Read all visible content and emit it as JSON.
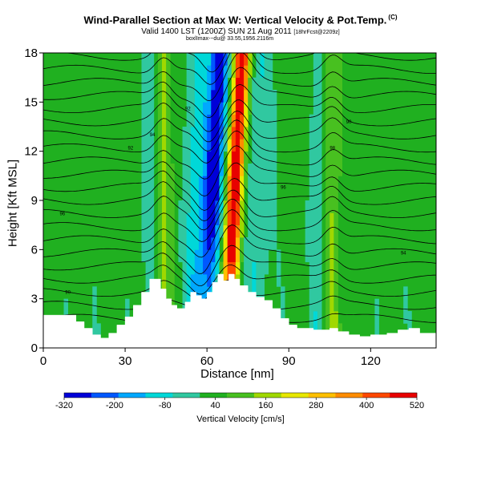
{
  "header": {
    "title": "Wind-Parallel Section at Max W: Vertical Velocity & Pot.Temp.",
    "title_badge": "(C)",
    "subtitle_main": "Valid 1400 LST (1200Z) SUN 21 Aug 2011",
    "subtitle_tag": "[18hrFcst@2209z]",
    "subtitle_small": "boxlImax-~du@ 33.55,1956.2116m"
  },
  "chart_data": {
    "type": "heatmap",
    "xlabel": "Distance [nm]",
    "ylabel": "Height [Kft MSL]",
    "xlim": [
      0,
      144
    ],
    "ylim": [
      0,
      18
    ],
    "x_ticks": [
      0,
      30,
      60,
      90,
      120
    ],
    "y_ticks": [
      0,
      3,
      6,
      9,
      12,
      15,
      18
    ],
    "colorbar": {
      "label": "Vertical Velocity [cm/s]",
      "min": -320,
      "max": 520,
      "tick_labels": [
        "-320",
        "-200",
        "-80",
        "40",
        "160",
        "280",
        "400",
        "520"
      ],
      "colors": [
        "#0000d8",
        "#0058ff",
        "#00a8ff",
        "#00d8d8",
        "#30c8a0",
        "#20b020",
        "#48c020",
        "#a0d800",
        "#e8e800",
        "#ffc000",
        "#ff8c00",
        "#ff4800",
        "#e80000"
      ]
    },
    "background_color": "#20b020",
    "updraft": {
      "x": 70,
      "max_w": 520
    },
    "downdraft": {
      "x": 62,
      "min_w": -320
    },
    "secondary_updrafts": [
      {
        "x": 44
      },
      {
        "x": 106
      }
    ],
    "terrain_kft": [
      [
        0,
        2.0
      ],
      [
        8,
        2.0
      ],
      [
        12,
        1.6
      ],
      [
        15,
        1.2
      ],
      [
        18,
        0.8
      ],
      [
        21,
        0.6
      ],
      [
        24,
        0.9
      ],
      [
        27,
        1.4
      ],
      [
        30,
        1.9
      ],
      [
        33,
        2.6
      ],
      [
        36,
        3.4
      ],
      [
        39,
        4.2
      ],
      [
        41,
        4.2
      ],
      [
        43,
        3.6
      ],
      [
        45,
        3.0
      ],
      [
        47,
        2.6
      ],
      [
        49,
        2.4
      ],
      [
        52,
        2.8
      ],
      [
        54,
        3.4
      ],
      [
        56,
        3.2
      ],
      [
        58,
        3.0
      ],
      [
        60,
        3.4
      ],
      [
        62,
        4.0
      ],
      [
        64,
        4.5
      ],
      [
        66,
        4.1
      ],
      [
        68,
        4.5
      ],
      [
        70,
        4.2
      ],
      [
        72,
        3.8
      ],
      [
        75,
        3.4
      ],
      [
        78,
        3.1
      ],
      [
        81,
        2.9
      ],
      [
        84,
        2.4
      ],
      [
        87,
        1.8
      ],
      [
        90,
        1.4
      ],
      [
        93,
        1.2
      ],
      [
        96,
        1.2
      ],
      [
        99,
        1.1
      ],
      [
        102,
        1.1
      ],
      [
        105,
        1.2
      ],
      [
        108,
        1.0
      ],
      [
        112,
        0.8
      ],
      [
        116,
        0.7
      ],
      [
        120,
        0.8
      ],
      [
        126,
        0.9
      ],
      [
        130,
        1.1
      ],
      [
        134,
        1.2
      ],
      [
        138,
        0.9
      ],
      [
        144,
        0.7
      ]
    ],
    "isotherm_levels_kft": [
      1.8,
      2.6,
      3.4,
      4.2,
      5.0,
      5.8,
      6.6,
      7.4,
      8.2,
      9.0,
      9.8,
      10.6,
      11.4,
      12.2,
      13.0,
      13.8,
      14.6,
      15.4,
      16.2,
      17.0,
      17.8
    ],
    "isotherm_labels": [
      "90",
      "92",
      "94",
      "96",
      "98"
    ]
  }
}
